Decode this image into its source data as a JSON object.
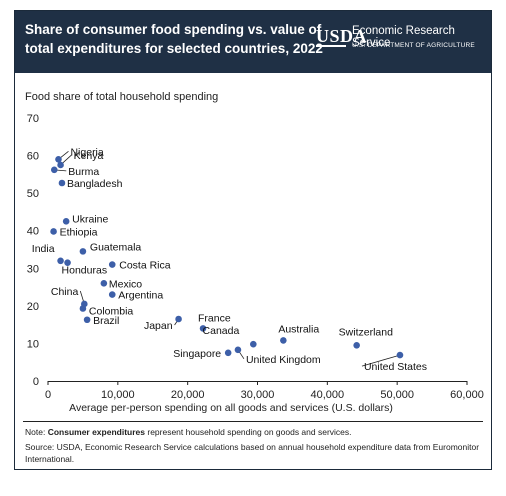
{
  "header": {
    "title_line1": "Share of consumer food spending vs. value of",
    "title_line2": "total expenditures for selected countries, 2022",
    "logo_text": "USDA",
    "agency_name": "Economic Research Service",
    "agency_dept": "U.S. DEPARTMENT OF AGRICULTURE"
  },
  "footer": {
    "note_prefix": "Note: ",
    "note_bold": "Consumer expenditures",
    "note_rest": " represent household spending on goods and services.",
    "source": "Source: USDA, Economic Research Service calculations based on annual household expenditure data from Euromonitor International."
  },
  "chart_data": {
    "type": "scatter",
    "ylabel": "Food share of total household spending",
    "xlabel": "Average per-person spending on all goods and services (U.S. dollars)",
    "xlim": [
      0,
      60000
    ],
    "ylim": [
      0,
      70
    ],
    "xticks": [
      0,
      10000,
      20000,
      30000,
      40000,
      50000,
      60000
    ],
    "xtick_labels": [
      "0",
      "10,000",
      "20,000",
      "30,000",
      "40,000",
      "50,000",
      "60,000"
    ],
    "yticks": [
      0,
      10,
      20,
      30,
      40,
      50,
      60,
      70
    ],
    "ytick_labels": [
      "0",
      "10",
      "20",
      "30",
      "40",
      "50",
      "60",
      "70"
    ],
    "grid": false,
    "point_color": "#3d5fa8",
    "points": [
      {
        "label": "Nigeria",
        "x": 1500,
        "y": 59
      },
      {
        "label": "Kenya",
        "x": 1800,
        "y": 57.5
      },
      {
        "label": "Burma",
        "x": 900,
        "y": 56.2
      },
      {
        "label": "Bangladesh",
        "x": 2000,
        "y": 52.7
      },
      {
        "label": "Ukraine",
        "x": 2600,
        "y": 42.5
      },
      {
        "label": "Ethiopia",
        "x": 800,
        "y": 39.8
      },
      {
        "label": "Guatemala",
        "x": 5000,
        "y": 34.5
      },
      {
        "label": "India",
        "x": 1800,
        "y": 32
      },
      {
        "label": "Honduras",
        "x": 2800,
        "y": 31.5
      },
      {
        "label": "Costa Rica",
        "x": 9200,
        "y": 31
      },
      {
        "label": "Mexico",
        "x": 8000,
        "y": 26
      },
      {
        "label": "Argentina",
        "x": 9200,
        "y": 23
      },
      {
        "label": "China",
        "x": 5200,
        "y": 20.5
      },
      {
        "label": "Colombia",
        "x": 5000,
        "y": 19.3
      },
      {
        "label": "Brazil",
        "x": 5600,
        "y": 16.3
      },
      {
        "label": "Japan",
        "x": 18700,
        "y": 16.5
      },
      {
        "label": "France",
        "x": 22200,
        "y": 14
      },
      {
        "label": "Australia",
        "x": 33700,
        "y": 10.8
      },
      {
        "label": "Canada",
        "x": 29400,
        "y": 9.8
      },
      {
        "label": "Switzerland",
        "x": 44200,
        "y": 9.5
      },
      {
        "label": "Singapore",
        "x": 25800,
        "y": 7.5
      },
      {
        "label": "United Kingdom",
        "x": 27200,
        "y": 8.3
      },
      {
        "label": "United States",
        "x": 50400,
        "y": 6.9
      }
    ]
  }
}
